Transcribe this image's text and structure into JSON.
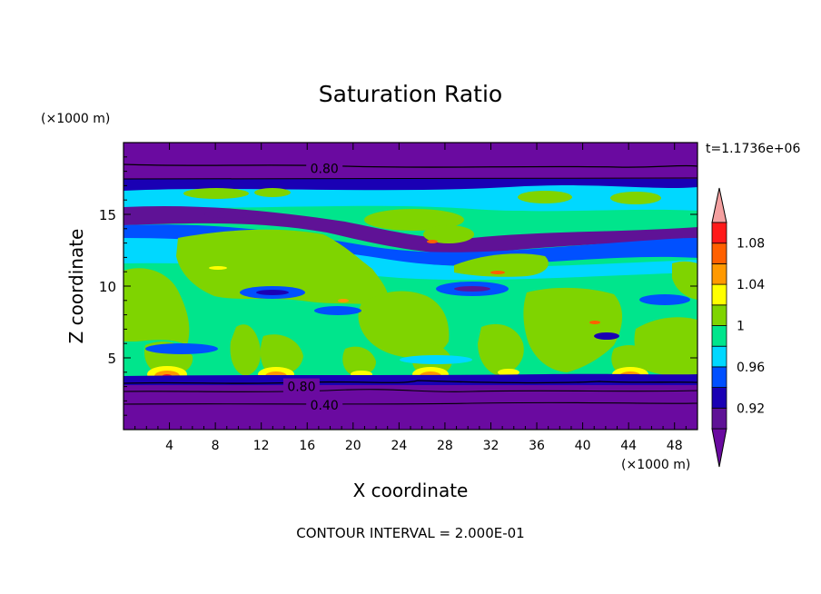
{
  "chart_data": {
    "type": "heatmap",
    "title": "Saturation Ratio",
    "xlabel": "X coordinate",
    "ylabel": "Z coordinate",
    "x_unit": "(×1000 m)",
    "y_unit": "(×1000 m)",
    "time_label": "t=1.1736e+06",
    "footer": "CONTOUR INTERVAL = 2.000E-01",
    "xlim": [
      0,
      50
    ],
    "ylim": [
      0,
      20
    ],
    "x_ticks": [
      4,
      8,
      12,
      16,
      20,
      24,
      28,
      32,
      36,
      40,
      44,
      48
    ],
    "y_ticks": [
      5,
      10,
      15
    ],
    "contour_labels": [
      {
        "text": "0.80",
        "x": 17.5,
        "y": 18.2
      },
      {
        "text": "0.80",
        "x": 15.5,
        "y": 3.0
      },
      {
        "text": "0.40",
        "x": 17.5,
        "y": 1.7
      }
    ],
    "colorbar": {
      "levels": [
        0.9,
        0.92,
        0.94,
        0.96,
        0.98,
        1.0,
        1.02,
        1.04,
        1.06,
        1.08,
        1.1
      ],
      "tick_labels": [
        "0.92",
        "0.96",
        "1",
        "1.04",
        "1.08"
      ],
      "tick_values": [
        0.92,
        0.96,
        1.0,
        1.04,
        1.08
      ],
      "colors": [
        "#5f1296",
        "#1a00b4",
        "#0050ff",
        "#00d8ff",
        "#00e58c",
        "#7fd400",
        "#ffff00",
        "#ff9900",
        "#ff6000",
        "#ff1a1a"
      ],
      "below_color": "#6a0aa0",
      "above_color": "#f4a0a0"
    }
  }
}
